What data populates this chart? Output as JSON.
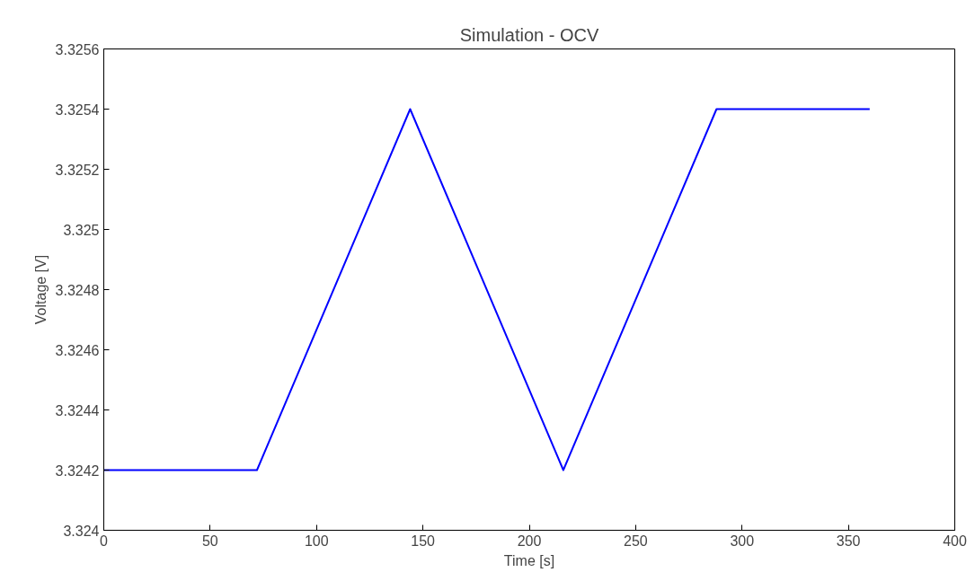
{
  "chart_data": {
    "type": "line",
    "title": "Simulation - OCV",
    "xlabel": "Time [s]",
    "ylabel": "Voltage [V]",
    "x": [
      0,
      72,
      144,
      216,
      288,
      360
    ],
    "series": [
      {
        "color": "#0000ff",
        "values": [
          3.3242,
          3.3242,
          3.3254,
          3.3242,
          3.3254,
          3.3254
        ]
      }
    ],
    "xlim": [
      0,
      400
    ],
    "xticks": [
      0,
      50,
      100,
      150,
      200,
      250,
      300,
      350,
      400
    ],
    "ylim": [
      3.324,
      3.3256
    ],
    "yticks": [
      3.324,
      3.3242,
      3.3244,
      3.3246,
      3.3248,
      3.325,
      3.3252,
      3.3254,
      3.3256
    ],
    "grid": false,
    "marker": "none",
    "line_style": "solid"
  }
}
